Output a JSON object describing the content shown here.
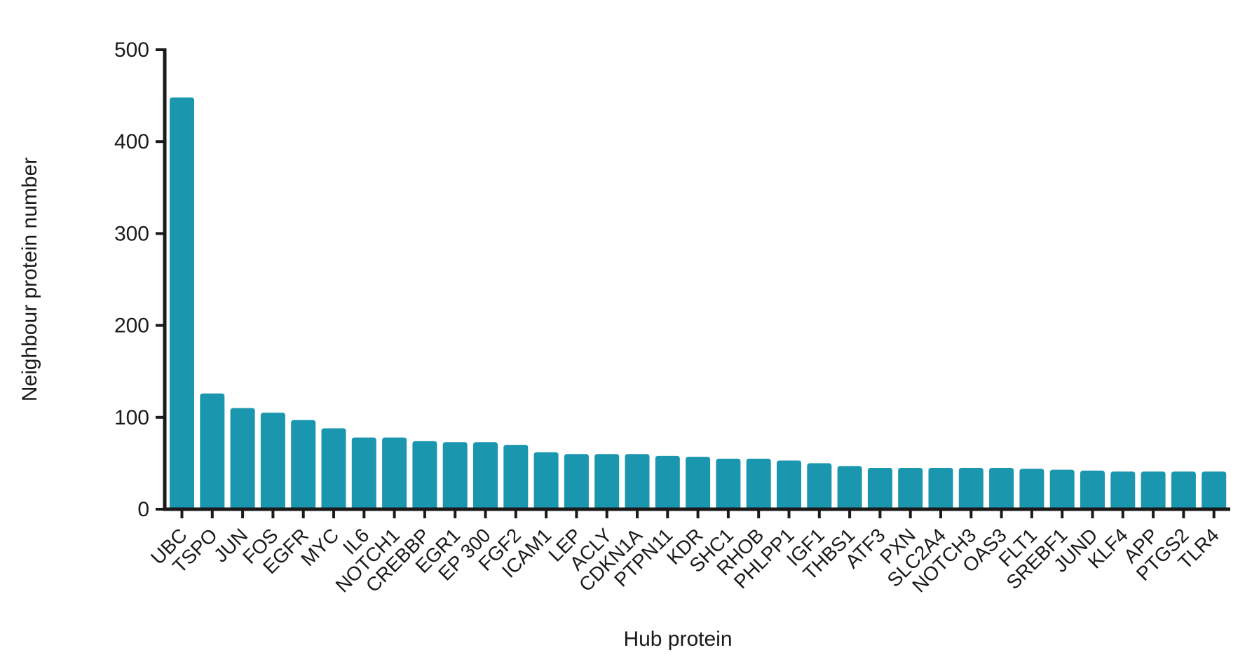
{
  "figure": {
    "background": "#ffffff"
  },
  "chart_data": {
    "type": "bar",
    "title": "",
    "xlabel": "Hub protein",
    "ylabel": "Neighbour protein number",
    "categories": [
      "UBC",
      "TSPO",
      "JUN",
      "FOS",
      "EGFR",
      "MYC",
      "IL6",
      "NOTCH1",
      "CREBBP",
      "EGR1",
      "EP 300",
      "FGF2",
      "ICAM1",
      "LEP",
      "ACLY",
      "CDKN1A",
      "PTPN11",
      "KDR",
      "SHC1",
      "RHOB",
      "PHLPP1",
      "IGF1",
      "THBS1",
      "ATF3",
      "PXN",
      "SLC2A4",
      "NOTCH3",
      "OAS3",
      "FLT1",
      "SREBF1",
      "JUND",
      "KLF4",
      "APP",
      "PTGS2",
      "TLR4"
    ],
    "values": [
      448,
      126,
      110,
      105,
      97,
      88,
      78,
      78,
      74,
      73,
      73,
      70,
      62,
      60,
      60,
      60,
      58,
      57,
      55,
      55,
      53,
      50,
      47,
      45,
      45,
      45,
      45,
      45,
      44,
      43,
      42,
      41,
      41,
      41,
      41
    ],
    "ylim": [
      0,
      500
    ],
    "yticks": [
      0,
      100,
      200,
      300,
      400,
      500
    ],
    "grid": false,
    "legend": null,
    "bar_color": "#1a96ae",
    "axis_color": "#1a1a1a",
    "xtick_rotation_deg": -45
  }
}
